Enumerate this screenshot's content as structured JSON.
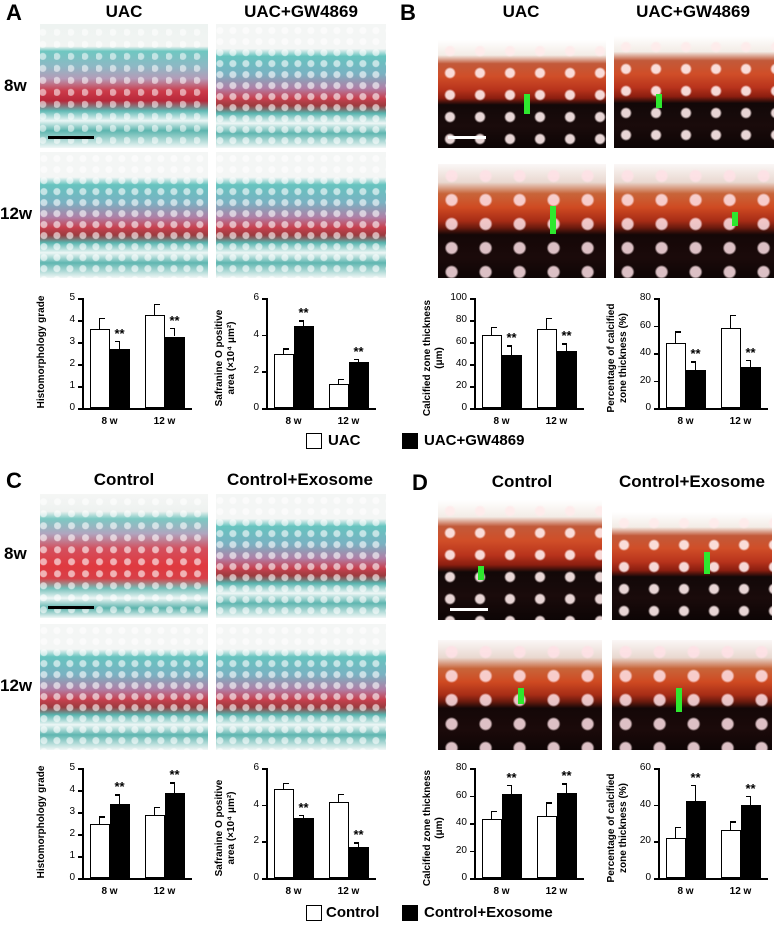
{
  "panels": {
    "A": {
      "label": "A",
      "col1": "UAC",
      "col2": "UAC+GW4869",
      "row1": "8w",
      "row2": "12w"
    },
    "B": {
      "label": "B",
      "col1": "UAC",
      "col2": "UAC+GW4869"
    },
    "C": {
      "label": "C",
      "col1": "Control",
      "col2": "Control+Exosome",
      "row1": "8w",
      "row2": "12w"
    },
    "D": {
      "label": "D",
      "col1": "Control",
      "col2": "Control+Exosome"
    }
  },
  "legends": {
    "top": {
      "white": "UAC",
      "black": "UAC+GW4869"
    },
    "bottom": {
      "white": "Control",
      "black": "Control+Exosome"
    }
  },
  "colors": {
    "bar_white": "#ffffff",
    "bar_black": "#000000",
    "scale_marker": "#2ee82e"
  },
  "chart_data": [
    {
      "id": "A1",
      "type": "bar",
      "ylabel": "Histomorphology grade",
      "categories": [
        "8 w",
        "12 w"
      ],
      "ylim": [
        0,
        5
      ],
      "yticks": [
        "0",
        "1",
        "2",
        "3",
        "4",
        "5"
      ],
      "series": [
        {
          "name": "UAC",
          "values": [
            3.6,
            4.25
          ],
          "errors": [
            0.5,
            0.5
          ]
        },
        {
          "name": "UAC+GW4869",
          "values": [
            2.7,
            3.25
          ],
          "errors": [
            0.35,
            0.4
          ]
        }
      ],
      "sig": [
        "**",
        "**"
      ]
    },
    {
      "id": "A2",
      "type": "bar",
      "ylabel": "Safranine O positive area (×10⁴ μm²)",
      "categories": [
        "8 w",
        "12 w"
      ],
      "ylim": [
        0,
        6
      ],
      "yticks": [
        "0",
        "2",
        "4",
        "6"
      ],
      "series": [
        {
          "name": "UAC",
          "values": [
            2.95,
            1.3
          ],
          "errors": [
            0.3,
            0.3
          ]
        },
        {
          "name": "UAC+GW4869",
          "values": [
            4.5,
            2.5
          ],
          "errors": [
            0.3,
            0.2
          ]
        }
      ],
      "sig": [
        "**",
        "**"
      ]
    },
    {
      "id": "B1",
      "type": "bar",
      "ylabel": "Calcified zone thickness (μm)",
      "categories": [
        "8 w",
        "12 w"
      ],
      "ylim": [
        0,
        100
      ],
      "yticks": [
        "0",
        "20",
        "40",
        "60",
        "80",
        "100"
      ],
      "series": [
        {
          "name": "UAC",
          "values": [
            66,
            72
          ],
          "errors": [
            8,
            10
          ]
        },
        {
          "name": "UAC+GW4869",
          "values": [
            48,
            52
          ],
          "errors": [
            9,
            7
          ]
        }
      ],
      "sig": [
        "**",
        "**"
      ]
    },
    {
      "id": "B2",
      "type": "bar",
      "ylabel": "Percentage of calcified zone thickness (%)",
      "categories": [
        "8 w",
        "12 w"
      ],
      "ylim": [
        0,
        80
      ],
      "yticks": [
        "0",
        "20",
        "40",
        "60",
        "80"
      ],
      "series": [
        {
          "name": "UAC",
          "values": [
            47,
            58
          ],
          "errors": [
            9,
            10
          ]
        },
        {
          "name": "UAC+GW4869",
          "values": [
            28,
            30
          ],
          "errors": [
            6,
            5
          ]
        }
      ],
      "sig": [
        "**",
        "**"
      ]
    },
    {
      "id": "C1",
      "type": "bar",
      "ylabel": "Histomorphology grade",
      "categories": [
        "8 w",
        "12 w"
      ],
      "ylim": [
        0,
        5
      ],
      "yticks": [
        "0",
        "1",
        "2",
        "3",
        "4",
        "5"
      ],
      "series": [
        {
          "name": "Control",
          "values": [
            2.45,
            2.85
          ],
          "errors": [
            0.35,
            0.4
          ]
        },
        {
          "name": "Control+Exosome",
          "values": [
            3.35,
            3.85
          ],
          "errors": [
            0.45,
            0.5
          ]
        }
      ],
      "sig": [
        "**",
        "**"
      ]
    },
    {
      "id": "C2",
      "type": "bar",
      "ylabel": "Safranine O positive area (×10⁴ μm²)",
      "categories": [
        "8 w",
        "12 w"
      ],
      "ylim": [
        0,
        6
      ],
      "yticks": [
        "0",
        "2",
        "4",
        "6"
      ],
      "series": [
        {
          "name": "Control",
          "values": [
            4.85,
            4.15
          ],
          "errors": [
            0.35,
            0.45
          ]
        },
        {
          "name": "Control+Exosome",
          "values": [
            3.25,
            1.7
          ],
          "errors": [
            0.2,
            0.25
          ]
        }
      ],
      "sig": [
        "**",
        "**"
      ]
    },
    {
      "id": "D1",
      "type": "bar",
      "ylabel": "Calcified zone thickness (μm)",
      "categories": [
        "8 w",
        "12 w"
      ],
      "ylim": [
        0,
        80
      ],
      "yticks": [
        "0",
        "20",
        "40",
        "60",
        "80"
      ],
      "series": [
        {
          "name": "Control",
          "values": [
            43,
            45
          ],
          "errors": [
            6,
            10
          ]
        },
        {
          "name": "Control+Exosome",
          "values": [
            61,
            62
          ],
          "errors": [
            7,
            7
          ]
        }
      ],
      "sig": [
        "**",
        "**"
      ]
    },
    {
      "id": "D2",
      "type": "bar",
      "ylabel": "Percentage of calcified zone thickness (%)",
      "categories": [
        "8 w",
        "12 w"
      ],
      "ylim": [
        0,
        60
      ],
      "yticks": [
        "0",
        "20",
        "40",
        "60"
      ],
      "series": [
        {
          "name": "Control",
          "values": [
            22,
            26
          ],
          "errors": [
            6,
            5
          ]
        },
        {
          "name": "Control+Exosome",
          "values": [
            42,
            40
          ],
          "errors": [
            9,
            5
          ]
        }
      ],
      "sig": [
        "**",
        "**"
      ]
    }
  ]
}
